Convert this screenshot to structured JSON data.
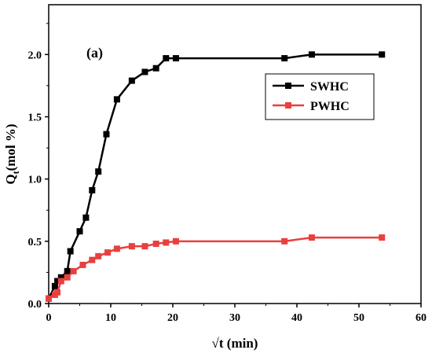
{
  "chart_data": {
    "type": "line",
    "panel_label": "(a)",
    "xlabel": "√t (min)",
    "ylabel_main": "Q",
    "ylabel_sub": "t",
    "ylabel_rest": "(mol %)",
    "xlim": [
      0,
      60
    ],
    "ylim": [
      0,
      2.4
    ],
    "xticks": [
      0,
      10,
      20,
      30,
      40,
      50,
      60
    ],
    "yticks": [
      0.0,
      0.5,
      1.0,
      1.5,
      2.0
    ],
    "x_tick_labels": [
      "0",
      "10",
      "20",
      "30",
      "40",
      "50",
      "60"
    ],
    "y_tick_labels": [
      "0.0",
      "0.5",
      "1.0",
      "1.5",
      "2.0"
    ],
    "grid": false,
    "legend_position": "right-middle",
    "series": [
      {
        "name": "SWHC",
        "color": "#000000",
        "marker": "square",
        "x": [
          0.0,
          1.0,
          1.4,
          2.0,
          3.0,
          3.5,
          5.0,
          6.0,
          7.0,
          8.0,
          9.3,
          11.0,
          13.4,
          15.5,
          17.3,
          18.9,
          20.5,
          38.0,
          42.4,
          53.7
        ],
        "y": [
          0.04,
          0.14,
          0.18,
          0.21,
          0.26,
          0.42,
          0.58,
          0.69,
          0.91,
          1.06,
          1.36,
          1.64,
          1.79,
          1.86,
          1.89,
          1.97,
          1.97,
          1.97,
          2.0,
          2.0
        ]
      },
      {
        "name": "PWHC",
        "color": "#e8403f",
        "marker": "square",
        "x": [
          0.0,
          1.0,
          1.4,
          2.0,
          3.0,
          4.0,
          5.5,
          7.0,
          8.0,
          9.5,
          11.0,
          13.4,
          15.5,
          17.3,
          18.9,
          20.5,
          38.0,
          42.4,
          53.7
        ],
        "y": [
          0.04,
          0.07,
          0.09,
          0.18,
          0.21,
          0.26,
          0.31,
          0.35,
          0.38,
          0.41,
          0.44,
          0.46,
          0.46,
          0.48,
          0.49,
          0.5,
          0.5,
          0.53,
          0.53
        ]
      }
    ]
  }
}
